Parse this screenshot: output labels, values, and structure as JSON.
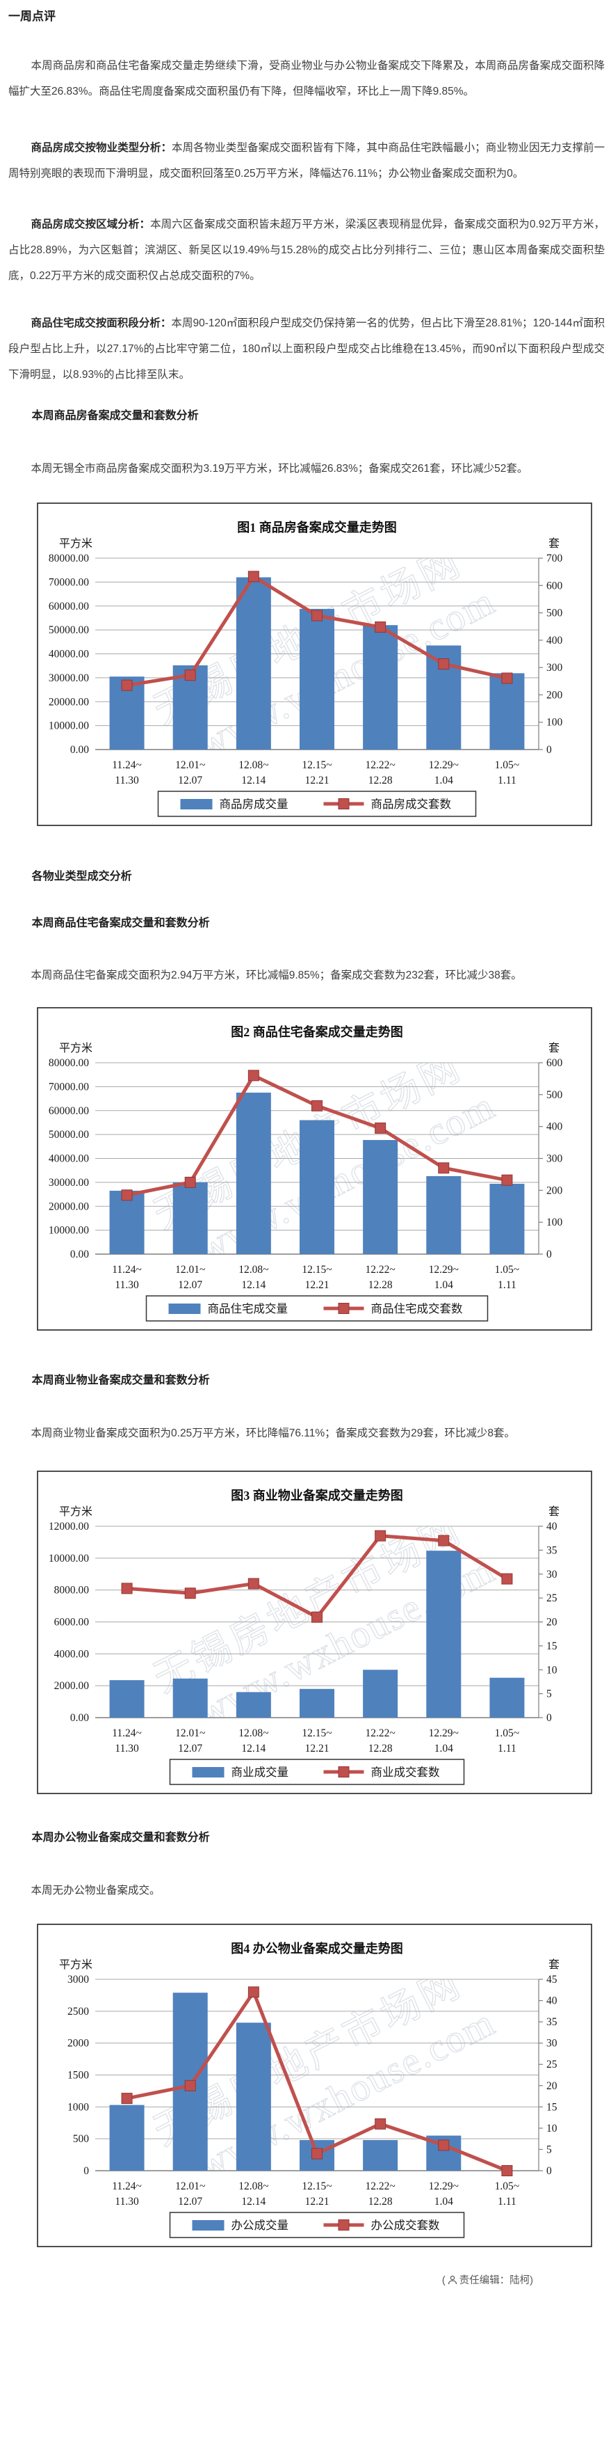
{
  "report": {
    "main_title": "一周点评",
    "intro": "本周商品房和商品住宅备案成交量走势继续下滑，受商业物业与办公物业备案成交下降累及，本周商品房备案成交面积降幅扩大至26.83%。商品住宅周度备案成交面积虽仍有下降，但降幅收窄，环比上一周下降9.85%。",
    "analysis": [
      {
        "lead": "商品房成交按物业类型分析：",
        "text": "本周各物业类型备案成交面积皆有下降，其中商品住宅跌幅最小；商业物业因无力支撑前一周特别亮眼的表现而下滑明显，成交面积回落至0.25万平方米，降幅达76.11%；办公物业备案成交面积为0。"
      },
      {
        "lead": "商品房成交按区域分析：",
        "text": "本周六区备案成交面积皆未超万平方米，梁溪区表现稍显优异，备案成交面积为0.92万平方米，占比28.89%，为六区魁首；滨湖区、新吴区以19.49%与15.28%的成交占比分列排行二、三位；惠山区本周备案成交面积垫底，0.22万平方米的成交面积仅占总成交面积的7%。"
      },
      {
        "lead": "商品住宅成交按面积段分析：",
        "text": "本周90-120㎡面积段户型成交仍保持第一名的优势，但占比下滑至28.81%；120-144㎡面积段户型占比上升，以27.17%的占比牢守第二位，180㎡以上面积段户型成交占比维稳在13.45%，而90㎡以下面积段户型成交下滑明显，以8.93%的占比排至队末。"
      }
    ],
    "sections": [
      {
        "heading": "本周商品房备案成交量和套数分析",
        "text": "本周无锡全市商品房备案成交面积为3.19万平方米，环比减幅26.83%；备案成交261套，环比减少52套。"
      },
      {
        "heading": "各物业类型成交分析",
        "text": ""
      },
      {
        "heading": "本周商品住宅备案成交量和套数分析",
        "text": "本周商品住宅备案成交面积为2.94万平方米，环比减幅9.85%；备案成交套数为232套，环比减少38套。"
      },
      {
        "heading": "本周商业物业备案成交量和套数分析",
        "text": "本周商业物业备案成交面积为0.25万平方米，环比降幅76.11%；备案成交套数为29套，环比减少8套。"
      },
      {
        "heading": "本周办公物业备案成交量和套数分析",
        "text": "本周无办公物业备案成交。"
      }
    ],
    "footer": {
      "open": "(",
      "label": "责任编辑：陆柯",
      "close": ")"
    }
  },
  "watermark_cn": "无锡房地产市场网",
  "watermark_url": "www.wxhouse.com",
  "colors": {
    "bar": "#4f81bd",
    "line": "#c0504d",
    "marker_edge": "#943634"
  },
  "chart_data": [
    {
      "type": "bar",
      "title": "图1  商品房备案成交量走势图",
      "left_axis": {
        "unit": "平方米",
        "max": 80000,
        "step": 10000,
        "decimals": 2
      },
      "right_axis": {
        "unit": "套",
        "max": 700,
        "step": 100
      },
      "categories": [
        [
          "11.24~",
          "11.30"
        ],
        [
          "12.01~",
          "12.07"
        ],
        [
          "12.08~",
          "12.14"
        ],
        [
          "12.15~",
          "12.21"
        ],
        [
          "12.22~",
          "12.28"
        ],
        [
          "12.29~",
          "1.04"
        ],
        [
          "1.05~",
          "1.11"
        ]
      ],
      "series": [
        {
          "name": "商品房成交量",
          "type": "bar",
          "axis": "left",
          "values": [
            30500,
            35200,
            72000,
            58800,
            52000,
            43500,
            31900
          ]
        },
        {
          "name": "商品房成交套数",
          "type": "line",
          "axis": "right",
          "values": [
            235,
            272,
            633,
            490,
            448,
            313,
            261
          ]
        }
      ]
    },
    {
      "type": "bar",
      "title": "图2  商品住宅备案成交量走势图",
      "left_axis": {
        "unit": "平方米",
        "max": 80000,
        "step": 10000,
        "decimals": 2
      },
      "right_axis": {
        "unit": "套",
        "max": 600,
        "step": 100
      },
      "categories": [
        [
          "11.24~",
          "11.30"
        ],
        [
          "12.01~",
          "12.07"
        ],
        [
          "12.08~",
          "12.14"
        ],
        [
          "12.15~",
          "12.21"
        ],
        [
          "12.22~",
          "12.28"
        ],
        [
          "12.29~",
          "1.04"
        ],
        [
          "1.05~",
          "1.11"
        ]
      ],
      "series": [
        {
          "name": "商品住宅成交量",
          "type": "bar",
          "axis": "left",
          "values": [
            26500,
            30000,
            67500,
            56000,
            47700,
            32600,
            29400
          ]
        },
        {
          "name": "商品住宅成交套数",
          "type": "line",
          "axis": "right",
          "values": [
            185,
            225,
            560,
            465,
            395,
            270,
            232
          ]
        }
      ]
    },
    {
      "type": "bar",
      "title": "图3  商业物业备案成交量走势图",
      "left_axis": {
        "unit": "平方米",
        "max": 12000,
        "step": 2000,
        "decimals": 2
      },
      "right_axis": {
        "unit": "套",
        "max": 40,
        "step": 5
      },
      "categories": [
        [
          "11.24~",
          "11.30"
        ],
        [
          "12.01~",
          "12.07"
        ],
        [
          "12.08~",
          "12.14"
        ],
        [
          "12.15~",
          "12.21"
        ],
        [
          "12.22~",
          "12.28"
        ],
        [
          "12.29~",
          "1.04"
        ],
        [
          "1.05~",
          "1.11"
        ]
      ],
      "series": [
        {
          "name": "商业成交量",
          "type": "bar",
          "axis": "left",
          "values": [
            2350,
            2450,
            1600,
            1800,
            3000,
            10465,
            2500
          ]
        },
        {
          "name": "商业成交套数",
          "type": "line",
          "axis": "right",
          "values": [
            27,
            26,
            28,
            21,
            38,
            37,
            29
          ]
        }
      ]
    },
    {
      "type": "bar",
      "title": "图4  办公物业备案成交量走势图",
      "left_axis": {
        "unit": "平方米",
        "max": 3000,
        "step": 500,
        "decimals": 0
      },
      "right_axis": {
        "unit": "套",
        "max": 45,
        "step": 5
      },
      "categories": [
        [
          "11.24~",
          "11.30"
        ],
        [
          "12.01~",
          "12.07"
        ],
        [
          "12.08~",
          "12.14"
        ],
        [
          "12.15~",
          "12.21"
        ],
        [
          "12.22~",
          "12.28"
        ],
        [
          "12.29~",
          "1.04"
        ],
        [
          "1.05~",
          "1.11"
        ]
      ],
      "series": [
        {
          "name": "办公成交量",
          "type": "bar",
          "axis": "left",
          "values": [
            1030,
            2790,
            2320,
            480,
            480,
            550,
            0
          ]
        },
        {
          "name": "办公成交套数",
          "type": "line",
          "axis": "right",
          "values": [
            17,
            20,
            42,
            4,
            11,
            6,
            0
          ]
        }
      ]
    }
  ]
}
